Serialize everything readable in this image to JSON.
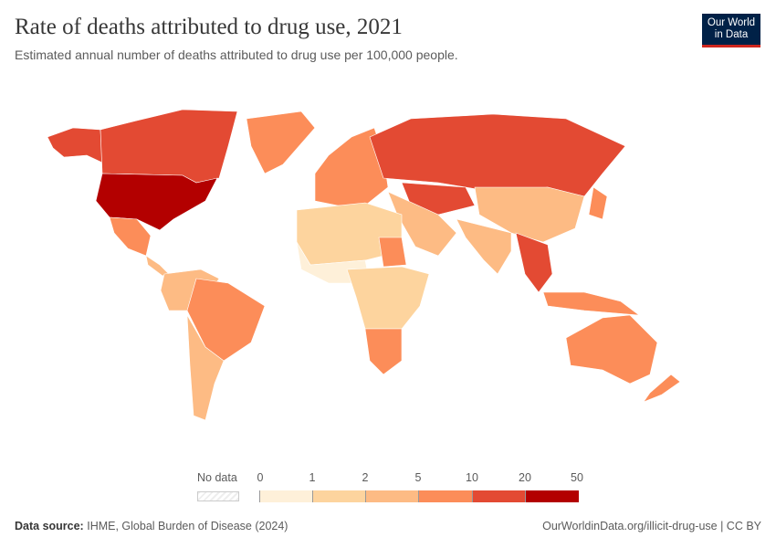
{
  "header": {
    "title": "Rate of deaths attributed to drug use, 2021",
    "subtitle": "Estimated annual number of deaths attributed to drug use per 100,000 people.",
    "logo_line1": "Our World",
    "logo_line2": "in Data"
  },
  "legend": {
    "no_data_label": "No data",
    "ticks": [
      "0",
      "1",
      "2",
      "5",
      "10",
      "20",
      "50"
    ],
    "colors": [
      "#fef0d9",
      "#fdd49e",
      "#fdbb84",
      "#fc8d59",
      "#e34a33",
      "#b30000"
    ]
  },
  "footer": {
    "source_label": "Data source:",
    "source": "IHME, Global Burden of Disease (2024)",
    "url": "OurWorldinData.org/illicit-drug-use | CC BY"
  }
}
